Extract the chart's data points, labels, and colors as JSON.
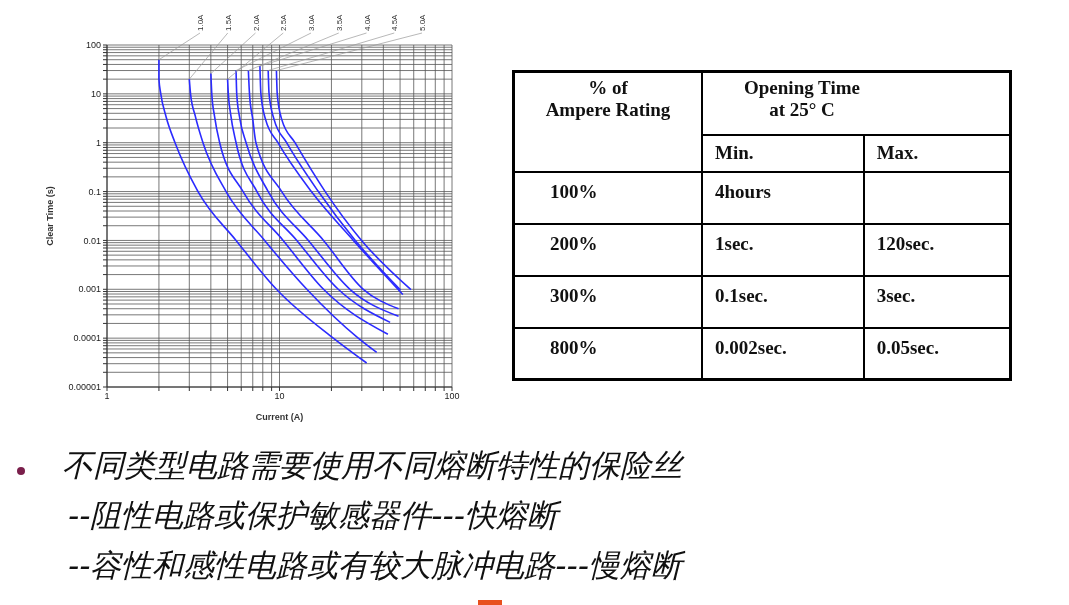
{
  "chart_data": [
    {
      "type": "line",
      "xlabel": "Current (A)",
      "ylabel": "Clear Time (s)",
      "log": "xy",
      "grid": true,
      "marker": "none",
      "xlim": [
        1,
        100
      ],
      "ylim": [
        1e-05,
        100
      ],
      "xticks": [
        1,
        {
          "value": 2,
          "label": null
        },
        {
          "value": 3,
          "label": null
        },
        {
          "value": 4,
          "label": null
        },
        {
          "value": 5,
          "label": null
        },
        {
          "value": 6,
          "label": null
        },
        {
          "value": 7,
          "label": null
        },
        {
          "value": 8,
          "label": null
        },
        {
          "value": 9,
          "label": null
        },
        10,
        {
          "value": 20,
          "label": null
        },
        {
          "value": 30,
          "label": null
        },
        {
          "value": 40,
          "label": null
        },
        {
          "value": 50,
          "label": null
        },
        {
          "value": 60,
          "label": null
        },
        {
          "value": 70,
          "label": null
        },
        {
          "value": 80,
          "label": null
        },
        {
          "value": 90,
          "label": null
        },
        100
      ],
      "yticks": [
        {
          "value": 1e-05,
          "label": "0.00001"
        },
        {
          "value": 2e-05,
          "label": null
        },
        {
          "value": 3e-05,
          "label": null
        },
        {
          "value": 4e-05,
          "label": null
        },
        {
          "value": 5e-05,
          "label": null
        },
        {
          "value": 6e-05,
          "label": null
        },
        {
          "value": 7e-05,
          "label": null
        },
        {
          "value": 8e-05,
          "label": null
        },
        {
          "value": 9e-05,
          "label": null
        },
        0.0001,
        {
          "value": 0.0002,
          "label": null
        },
        {
          "value": 0.0003,
          "label": null
        },
        {
          "value": 0.0004,
          "label": null
        },
        {
          "value": 0.0005,
          "label": null
        },
        {
          "value": 0.0006,
          "label": null
        },
        {
          "value": 0.0007,
          "label": null
        },
        {
          "value": 0.0008,
          "label": null
        },
        {
          "value": 0.0009,
          "label": null
        },
        0.001,
        {
          "value": 0.002,
          "label": null
        },
        {
          "value": 0.003,
          "label": null
        },
        {
          "value": 0.004,
          "label": null
        },
        {
          "value": 0.005,
          "label": null
        },
        {
          "value": 0.006,
          "label": null
        },
        {
          "value": 0.007,
          "label": null
        },
        {
          "value": 0.008,
          "label": null
        },
        {
          "value": 0.009,
          "label": null
        },
        0.01,
        {
          "value": 0.02,
          "label": null
        },
        {
          "value": 0.03,
          "label": null
        },
        {
          "value": 0.04,
          "label": null
        },
        {
          "value": 0.05,
          "label": null
        },
        {
          "value": 0.06,
          "label": null
        },
        {
          "value": 0.07,
          "label": null
        },
        {
          "value": 0.08,
          "label": null
        },
        {
          "value": 0.09,
          "label": null
        },
        0.1,
        {
          "value": 0.2,
          "label": null
        },
        {
          "value": 0.3,
          "label": null
        },
        {
          "value": 0.4,
          "label": null
        },
        {
          "value": 0.5,
          "label": null
        },
        {
          "value": 0.6,
          "label": null
        },
        {
          "value": 0.7,
          "label": null
        },
        {
          "value": 0.8,
          "label": null
        },
        {
          "value": 0.9,
          "label": null
        },
        1,
        {
          "value": 2,
          "label": null
        },
        {
          "value": 3,
          "label": null
        },
        {
          "value": 4,
          "label": null
        },
        {
          "value": 5,
          "label": null
        },
        {
          "value": 6,
          "label": null
        },
        {
          "value": 7,
          "label": null
        },
        {
          "value": 8,
          "label": null
        },
        {
          "value": 9,
          "label": null
        },
        10,
        {
          "value": 20,
          "label": null
        },
        {
          "value": 30,
          "label": null
        },
        {
          "value": 40,
          "label": null
        },
        {
          "value": 50,
          "label": null
        },
        {
          "value": 60,
          "label": null
        },
        {
          "value": 70,
          "label": null
        },
        {
          "value": 80,
          "label": null
        },
        {
          "value": 90,
          "label": null
        },
        100
      ],
      "series": [
        {
          "name": "1.0A",
          "color": "#2b2bff",
          "x": [
            2,
            2,
            2.05,
            2.2,
            2.48,
            3.37,
            5.6,
            9.6,
            20.5,
            32
          ],
          "values": [
            50,
            20,
            10,
            3.4,
            1,
            0.1,
            0.01,
            0.001,
            0.0001,
            3.1e-05
          ]
        },
        {
          "name": "1.5A",
          "color": "#2b2bff",
          "x": [
            3,
            3.05,
            3.25,
            3.6,
            4.9,
            8.2,
            14.4,
            28.6,
            36.6
          ],
          "values": [
            20,
            10,
            3.5,
            1,
            0.1,
            0.01,
            0.001,
            0.0001,
            5.1e-05
          ]
        },
        {
          "name": "2.0A",
          "color": "#2b2bff",
          "x": [
            4,
            4.05,
            4.2,
            4.5,
            6.15,
            10.5,
            18,
            42.5
          ],
          "values": [
            26,
            10,
            3.5,
            1,
            0.1,
            0.01,
            0.001,
            0.00012
          ]
        },
        {
          "name": "2.5A",
          "color": "#2b2bff",
          "x": [
            5,
            5.05,
            5.2,
            5.6,
            7.4,
            12.6,
            21.9,
            43.8
          ],
          "values": [
            20,
            10,
            4,
            1,
            0.1,
            0.01,
            0.001,
            0.00021
          ]
        },
        {
          "name": "3.0A",
          "color": "#2b2bff",
          "x": [
            5.6,
            5.65,
            5.9,
            6.4,
            8.6,
            14.7,
            25.6,
            49
          ],
          "values": [
            30,
            10,
            3,
            1,
            0.1,
            0.01,
            0.001,
            0.00028
          ]
        },
        {
          "name": "3.5A",
          "color": "#2b2bff",
          "x": [
            6.6,
            6.7,
            7,
            7.3,
            10.3,
            18,
            30.6,
            49
          ],
          "values": [
            30,
            10,
            3,
            1,
            0.1,
            0.01,
            0.001,
            0.0004
          ]
        },
        {
          "name": "4.0A",
          "color": "#2b2bff",
          "x": [
            7.7,
            7.8,
            8.3,
            9.8,
            15.3,
            26.8,
            51.9
          ],
          "values": [
            37,
            10,
            3,
            1,
            0.1,
            0.01,
            0.00078
          ]
        },
        {
          "name": "4.5A",
          "color": "#2b2bff",
          "x": [
            8.6,
            8.7,
            9.3,
            11,
            16.8,
            27.5,
            50.3
          ],
          "values": [
            30,
            10,
            3,
            1,
            0.1,
            0.01,
            0.00096
          ]
        },
        {
          "name": "5.0A",
          "color": "#2b2bff",
          "x": [
            9.6,
            9.7,
            10.3,
            12.3,
            18.4,
            29.9,
            57.8
          ],
          "values": [
            30,
            10,
            3,
            1,
            0.1,
            0.01,
            0.00098
          ]
        }
      ]
    },
    {
      "type": "other",
      "ylabel": "% of\nAmpere Rating",
      "xlabel": "Opening Time\nat 25°  C",
      "categories": [
        "Min.",
        "Max."
      ],
      "y_categories": [
        "100%",
        "200%",
        "300%",
        "800%"
      ],
      "cell_labels": [
        [
          "4hours",
          null
        ],
        [
          "1sec.",
          "120sec."
        ],
        [
          "0.1sec.",
          "3sec."
        ],
        [
          "0.002sec.",
          "0.05sec."
        ]
      ]
    },
    {
      "type": "other",
      "annotations": [
        "不同类型电路需要使用不同熔断特性的保险丝",
        "--阻性电路或保护敏感器件---快熔断",
        "--容性和感性电路或有较大脉冲电路---慢熔断"
      ]
    }
  ]
}
